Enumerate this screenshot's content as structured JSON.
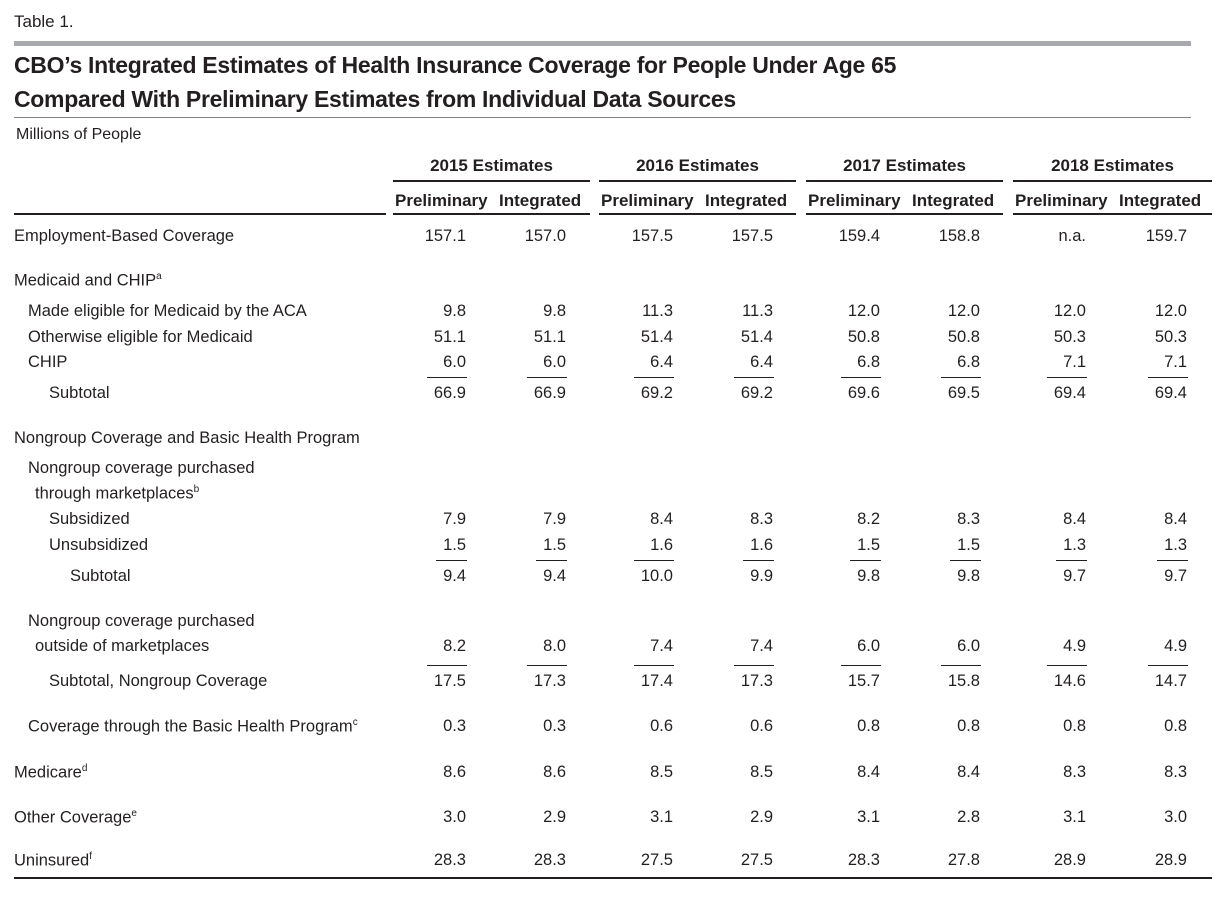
{
  "table_number": "Table 1.",
  "title_lines": [
    "CBO’s Integrated Estimates of Health Insurance Coverage for People Under Age 65",
    "Compared With Preliminary Estimates from Individual Data Sources"
  ],
  "units": "Millions of People",
  "years": [
    "2015 Estimates",
    "2016 Estimates",
    "2017 Estimates",
    "2018 Estimates"
  ],
  "subheaders": [
    "Preliminary",
    "Integrated"
  ],
  "rows": [
    {
      "label": "Employment-Based Coverage",
      "values": [
        "157.1",
        "157.0",
        "157.5",
        "157.5",
        "159.4",
        "158.8",
        "n.a.",
        "159.7"
      ]
    },
    {
      "label": "Medicaid and CHIP",
      "note": "a",
      "values": []
    },
    {
      "label": "Made eligible for Medicaid by the ACA",
      "values": [
        "9.8",
        "9.8",
        "11.3",
        "11.3",
        "12.0",
        "12.0",
        "12.0",
        "12.0"
      ]
    },
    {
      "label": "Otherwise eligible for Medicaid",
      "values": [
        "51.1",
        "51.1",
        "51.4",
        "51.4",
        "50.8",
        "50.8",
        "50.3",
        "50.3"
      ]
    },
    {
      "label": "CHIP",
      "values": [
        "6.0",
        "6.0",
        "6.4",
        "6.4",
        "6.8",
        "6.8",
        "7.1",
        "7.1"
      ]
    },
    {
      "label": "Subtotal",
      "values": [
        "66.9",
        "66.9",
        "69.2",
        "69.2",
        "69.6",
        "69.5",
        "69.4",
        "69.4"
      ]
    },
    {
      "label": "Nongroup Coverage and Basic Health Program",
      "values": []
    },
    {
      "label": "Nongroup coverage purchased",
      "values": []
    },
    {
      "label": "through marketplaces",
      "note": "b",
      "values": []
    },
    {
      "label": "Subsidized",
      "values": [
        "7.9",
        "7.9",
        "8.4",
        "8.3",
        "8.2",
        "8.3",
        "8.4",
        "8.4"
      ]
    },
    {
      "label": "Unsubsidized",
      "values": [
        "1.5",
        "1.5",
        "1.6",
        "1.6",
        "1.5",
        "1.5",
        "1.3",
        "1.3"
      ]
    },
    {
      "label": "Subtotal",
      "values": [
        "9.4",
        "9.4",
        "10.0",
        "9.9",
        "9.8",
        "9.8",
        "9.7",
        "9.7"
      ]
    },
    {
      "label": "Nongroup coverage purchased",
      "values": []
    },
    {
      "label": "outside of marketplaces",
      "values": [
        "8.2",
        "8.0",
        "7.4",
        "7.4",
        "6.0",
        "6.0",
        "4.9",
        "4.9"
      ]
    },
    {
      "label": "Subtotal, Nongroup Coverage",
      "values": [
        "17.5",
        "17.3",
        "17.4",
        "17.3",
        "15.7",
        "15.8",
        "14.6",
        "14.7"
      ]
    },
    {
      "label": "Coverage through the Basic Health Program",
      "note": "c",
      "values": [
        "0.3",
        "0.3",
        "0.6",
        "0.6",
        "0.8",
        "0.8",
        "0.8",
        "0.8"
      ]
    },
    {
      "label": "Medicare",
      "note": "d",
      "values": [
        "8.6",
        "8.6",
        "8.5",
        "8.5",
        "8.4",
        "8.4",
        "8.3",
        "8.3"
      ]
    },
    {
      "label": "Other Coverage",
      "note": "e",
      "values": [
        "3.0",
        "2.9",
        "3.1",
        "2.9",
        "3.1",
        "2.8",
        "3.1",
        "3.0"
      ]
    },
    {
      "label": "Uninsured",
      "note": "f",
      "values": [
        "28.3",
        "28.3",
        "27.5",
        "27.5",
        "28.3",
        "27.8",
        "28.9",
        "28.9"
      ]
    }
  ]
}
